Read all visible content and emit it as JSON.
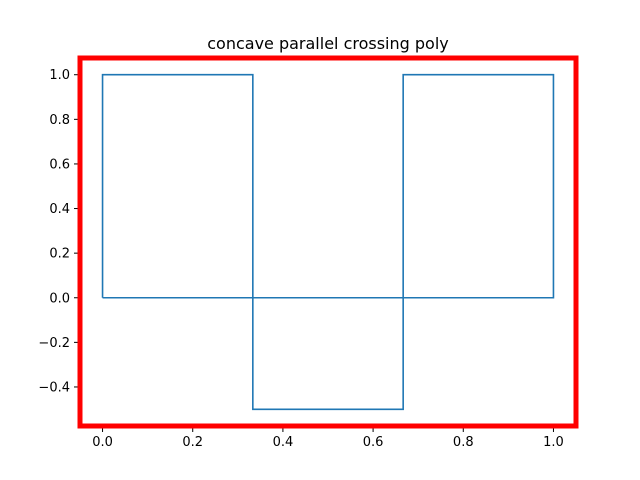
{
  "chart_data": {
    "type": "line",
    "title": "concave parallel crossing poly",
    "xlabel": "",
    "ylabel": "",
    "xlim": [
      -0.05,
      1.05
    ],
    "ylim": [
      -0.575,
      1.075
    ],
    "xticks": [
      0.0,
      0.2,
      0.4,
      0.6,
      0.8,
      1.0
    ],
    "xtick_labels": [
      "0.0",
      "0.2",
      "0.4",
      "0.6",
      "0.8",
      "1.0"
    ],
    "yticks": [
      -0.4,
      -0.2,
      0.0,
      0.2,
      0.4,
      0.6,
      0.8,
      1.0
    ],
    "ytick_labels": [
      "−0.4",
      "−0.2",
      "0.0",
      "0.2",
      "0.4",
      "0.6",
      "0.8",
      "1.0"
    ],
    "grid": false,
    "series": [
      {
        "x": [
          0,
          0.3333,
          0.3333,
          0.6667,
          0.6667,
          1,
          1,
          0.6667,
          0.6667,
          0.3333,
          0.3333,
          0,
          0
        ],
        "y": [
          0,
          0,
          -0.5,
          -0.5,
          0,
          0,
          1,
          1,
          0,
          0,
          1,
          1,
          0
        ],
        "color": "#1f77b4"
      }
    ],
    "frame_color": "#ff0000"
  }
}
